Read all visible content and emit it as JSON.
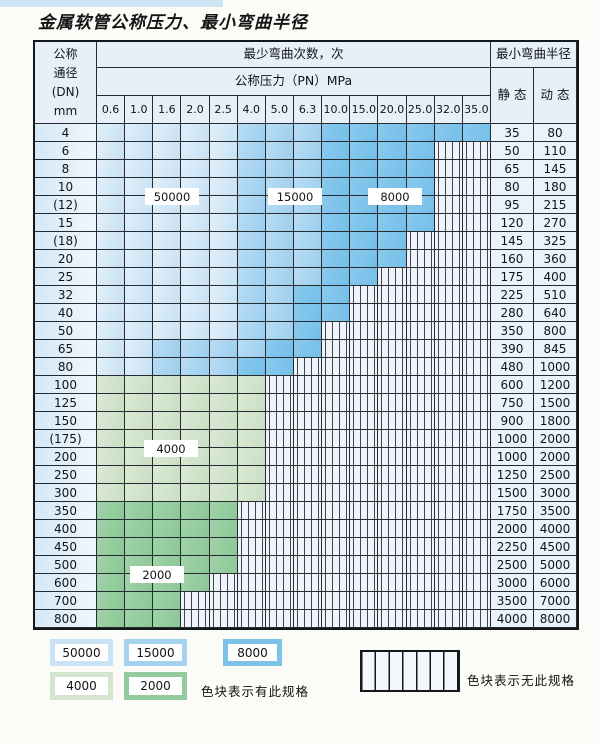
{
  "page": {
    "title": "金属软管公称压力、最小弯曲半径"
  },
  "table": {
    "header": {
      "dn_lines": [
        "公称",
        "通径",
        "(DN)",
        "mm"
      ],
      "bend_cycles": "最少弯曲次数，次",
      "min_radius": "最小弯曲半径",
      "pressure": "公称压力（PN）MPa",
      "static": "静 态",
      "dynamic": "动 态",
      "pressures": [
        "0.6",
        "1.0",
        "1.6",
        "2.0",
        "2.5",
        "4.0",
        "5.0",
        "6.3",
        "10.0",
        "15.0",
        "20.0",
        "25.0",
        "32.0",
        "35.0"
      ]
    }
  },
  "overlays": [
    {
      "text": "50000"
    },
    {
      "text": "15000"
    },
    {
      "text": "8000"
    },
    {
      "text": "4000"
    },
    {
      "text": "2000"
    }
  ],
  "legend": {
    "items": [
      {
        "label": "50000",
        "color": "#c9e2f4"
      },
      {
        "label": "15000",
        "color": "#a5d3ef"
      },
      {
        "label": "8000",
        "color": "#7cc2e9"
      },
      {
        "label": "4000",
        "color": "#d3e5cd"
      },
      {
        "label": "2000",
        "color": "#94cb9e"
      }
    ],
    "has_spec_text": "色块表示有此规格",
    "no_spec_text": "色块表示无此规格"
  },
  "colors": {
    "cycles_50000": "#c9e2f4",
    "cycles_15000": "#a5d3ef",
    "cycles_8000": "#7cc2e9",
    "cycles_4000": "#d3e5cd",
    "cycles_2000": "#94cb9e",
    "empty_cell": "#eff4fb",
    "header_bg": "#e7eff8",
    "grid_line": "#262b30",
    "accent_bar": "#cfe4f3"
  },
  "chart_data": {
    "type": "table",
    "title": "金属软管公称压力、最小弯曲半径",
    "pressure_columns_MPa": [
      "0.6",
      "1.0",
      "1.6",
      "2.0",
      "2.5",
      "4.0",
      "5.0",
      "6.3",
      "10.0",
      "15.0",
      "20.0",
      "25.0",
      "32.0",
      "35.0"
    ],
    "zone_legend": {
      "L": "50000次",
      "M": "15000次",
      "D": "8000次",
      "G": "4000次",
      "H": "2000次",
      "E": "无此规格"
    },
    "rows": [
      {
        "dn": "4",
        "zones": "LLLLLMMMDDDDDD",
        "static": "35",
        "dynamic": "80"
      },
      {
        "dn": "6",
        "zones": "LLLLLMMMDDDDEE",
        "static": "50",
        "dynamic": "110"
      },
      {
        "dn": "8",
        "zones": "LLLLLMMMDDDDEE",
        "static": "65",
        "dynamic": "145"
      },
      {
        "dn": "10",
        "zones": "LLLLLMMMDDDDEE",
        "static": "80",
        "dynamic": "180"
      },
      {
        "dn": "(12)",
        "zones": "LLLLLMMMDDDDEE",
        "static": "95",
        "dynamic": "215"
      },
      {
        "dn": "15",
        "zones": "LLLLLMMMDDDDEE",
        "static": "120",
        "dynamic": "270"
      },
      {
        "dn": "(18)",
        "zones": "LLLLLMMMDDDEEE",
        "static": "145",
        "dynamic": "325"
      },
      {
        "dn": "20",
        "zones": "LLLLLMMMDDDEEE",
        "static": "160",
        "dynamic": "360"
      },
      {
        "dn": "25",
        "zones": "LLLLLMMMDDEEEE",
        "static": "175",
        "dynamic": "400"
      },
      {
        "dn": "32",
        "zones": "LLLLLMMDDEEEEE",
        "static": "225",
        "dynamic": "510"
      },
      {
        "dn": "40",
        "zones": "LLLLLMMDDEEEEE",
        "static": "280",
        "dynamic": "640"
      },
      {
        "dn": "50",
        "zones": "LLLLLMMDEEEEEE",
        "static": "350",
        "dynamic": "800"
      },
      {
        "dn": "65",
        "zones": "LLMMMMDDEEEEEE",
        "static": "390",
        "dynamic": "845"
      },
      {
        "dn": "80",
        "zones": "LLMMMDDEEEEEEE",
        "static": "480",
        "dynamic": "1000"
      },
      {
        "dn": "100",
        "zones": "GGGGGGEEEEEEEE",
        "static": "600",
        "dynamic": "1200"
      },
      {
        "dn": "125",
        "zones": "GGGGGGEEEEEEEE",
        "static": "750",
        "dynamic": "1500"
      },
      {
        "dn": "150",
        "zones": "GGGGGGEEEEEEEE",
        "static": "900",
        "dynamic": "1800"
      },
      {
        "dn": "(175)",
        "zones": "GGGGGGEEEEEEEE",
        "static": "1000",
        "dynamic": "2000"
      },
      {
        "dn": "200",
        "zones": "GGGGGGEEEEEEEE",
        "static": "1000",
        "dynamic": "2000"
      },
      {
        "dn": "250",
        "zones": "GGGGGGEEEEEEEE",
        "static": "1250",
        "dynamic": "2500"
      },
      {
        "dn": "300",
        "zones": "GGGGGGEEEEEEEE",
        "static": "1500",
        "dynamic": "3000"
      },
      {
        "dn": "350",
        "zones": "HHHHHEEEEEEEEE",
        "static": "1750",
        "dynamic": "3500"
      },
      {
        "dn": "400",
        "zones": "HHHHHEEEEEEEEE",
        "static": "2000",
        "dynamic": "4000"
      },
      {
        "dn": "450",
        "zones": "HHHHHEEEEEEEEE",
        "static": "2250",
        "dynamic": "4500"
      },
      {
        "dn": "500",
        "zones": "HHHHHEEEEEEEEE",
        "static": "2500",
        "dynamic": "5000"
      },
      {
        "dn": "600",
        "zones": "HHHHEEEEEEEEEE",
        "static": "3000",
        "dynamic": "6000"
      },
      {
        "dn": "700",
        "zones": "HHHEEEEEEEEEEE",
        "static": "3500",
        "dynamic": "7000"
      },
      {
        "dn": "800",
        "zones": "HHHEEEEEEEEEEE",
        "static": "4000",
        "dynamic": "8000"
      }
    ]
  }
}
